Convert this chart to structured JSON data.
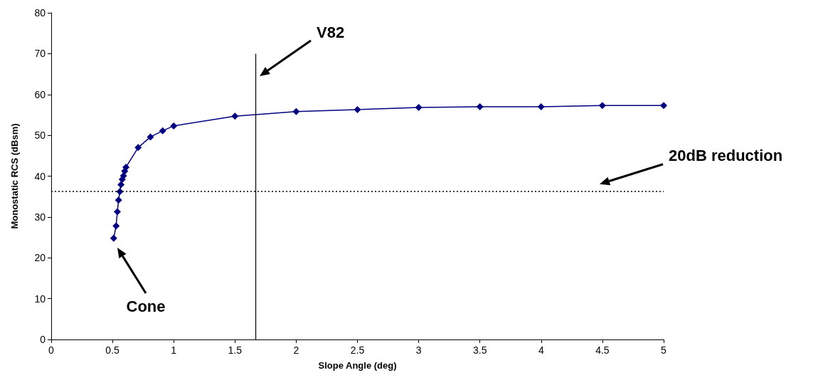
{
  "chart_data": {
    "type": "line",
    "xlabel": "Slope Angle (deg)",
    "ylabel": "Monostatic RCS (dBsm)",
    "xlim": [
      0,
      5
    ],
    "xticks": [
      0,
      0.5,
      1,
      1.5,
      2,
      2.5,
      3,
      3.5,
      4,
      4.5,
      5
    ],
    "ylim": [
      0,
      80
    ],
    "yticks": [
      0,
      10,
      20,
      30,
      40,
      50,
      60,
      70,
      80
    ],
    "grid": false,
    "marker": "diamond",
    "line_style": "solid",
    "series": [
      {
        "color": "#000080",
        "x": [
          0.51,
          0.53,
          0.54,
          0.55,
          0.56,
          0.57,
          0.58,
          0.59,
          0.6,
          0.61,
          0.71,
          0.81,
          0.91,
          1.0,
          1.5,
          2,
          2.5,
          3,
          3.5,
          4,
          4.5,
          5
        ],
        "values": [
          24.8,
          27.8,
          31.3,
          34.1,
          36.2,
          37.9,
          39.2,
          40.1,
          41.2,
          42.2,
          47.0,
          49.6,
          51.1,
          52.3,
          54.7,
          55.8,
          56.3,
          56.8,
          57.0,
          57.0,
          57.3,
          57.3
        ]
      },
      {
        "color": "#000000",
        "type": "line",
        "marker": "none",
        "x": [
          1.67,
          1.67
        ],
        "values": [
          0,
          70
        ]
      }
    ],
    "ref_lines": [
      {
        "axis": "y",
        "value": 36.3,
        "label": "20dB reduction",
        "line_style": "dotted",
        "color": "#000000"
      }
    ],
    "annotations": [
      "V82",
      "Cone"
    ]
  }
}
